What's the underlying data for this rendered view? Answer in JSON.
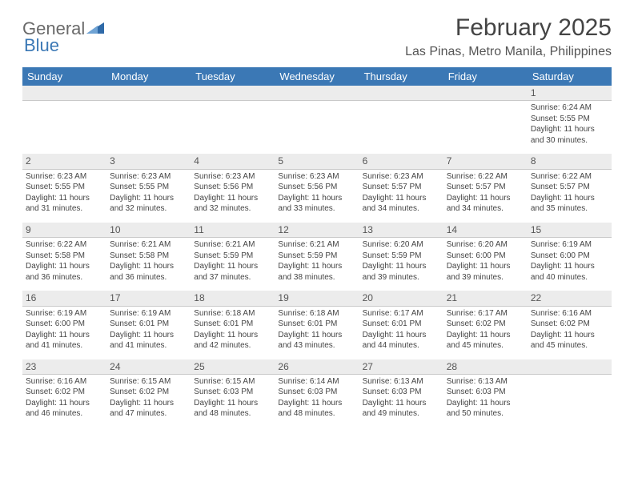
{
  "logo": {
    "part1": "General",
    "part2": "Blue"
  },
  "title": "February 2025",
  "location": "Las Pinas, Metro Manila, Philippines",
  "colors": {
    "header_bg": "#3b78b5",
    "header_text": "#ffffff",
    "numrow_bg": "#ececec",
    "text_color": "#444444",
    "page_bg": "#ffffff"
  },
  "day_headers": [
    "Sunday",
    "Monday",
    "Tuesday",
    "Wednesday",
    "Thursday",
    "Friday",
    "Saturday"
  ],
  "weeks": [
    {
      "nums": [
        "",
        "",
        "",
        "",
        "",
        "",
        "1"
      ],
      "cells": [
        {
          "sunrise": "",
          "sunset": "",
          "daylight": ""
        },
        {
          "sunrise": "",
          "sunset": "",
          "daylight": ""
        },
        {
          "sunrise": "",
          "sunset": "",
          "daylight": ""
        },
        {
          "sunrise": "",
          "sunset": "",
          "daylight": ""
        },
        {
          "sunrise": "",
          "sunset": "",
          "daylight": ""
        },
        {
          "sunrise": "",
          "sunset": "",
          "daylight": ""
        },
        {
          "sunrise": "Sunrise: 6:24 AM",
          "sunset": "Sunset: 5:55 PM",
          "daylight": "Daylight: 11 hours and 30 minutes."
        }
      ]
    },
    {
      "nums": [
        "2",
        "3",
        "4",
        "5",
        "6",
        "7",
        "8"
      ],
      "cells": [
        {
          "sunrise": "Sunrise: 6:23 AM",
          "sunset": "Sunset: 5:55 PM",
          "daylight": "Daylight: 11 hours and 31 minutes."
        },
        {
          "sunrise": "Sunrise: 6:23 AM",
          "sunset": "Sunset: 5:55 PM",
          "daylight": "Daylight: 11 hours and 32 minutes."
        },
        {
          "sunrise": "Sunrise: 6:23 AM",
          "sunset": "Sunset: 5:56 PM",
          "daylight": "Daylight: 11 hours and 32 minutes."
        },
        {
          "sunrise": "Sunrise: 6:23 AM",
          "sunset": "Sunset: 5:56 PM",
          "daylight": "Daylight: 11 hours and 33 minutes."
        },
        {
          "sunrise": "Sunrise: 6:23 AM",
          "sunset": "Sunset: 5:57 PM",
          "daylight": "Daylight: 11 hours and 34 minutes."
        },
        {
          "sunrise": "Sunrise: 6:22 AM",
          "sunset": "Sunset: 5:57 PM",
          "daylight": "Daylight: 11 hours and 34 minutes."
        },
        {
          "sunrise": "Sunrise: 6:22 AM",
          "sunset": "Sunset: 5:57 PM",
          "daylight": "Daylight: 11 hours and 35 minutes."
        }
      ]
    },
    {
      "nums": [
        "9",
        "10",
        "11",
        "12",
        "13",
        "14",
        "15"
      ],
      "cells": [
        {
          "sunrise": "Sunrise: 6:22 AM",
          "sunset": "Sunset: 5:58 PM",
          "daylight": "Daylight: 11 hours and 36 minutes."
        },
        {
          "sunrise": "Sunrise: 6:21 AM",
          "sunset": "Sunset: 5:58 PM",
          "daylight": "Daylight: 11 hours and 36 minutes."
        },
        {
          "sunrise": "Sunrise: 6:21 AM",
          "sunset": "Sunset: 5:59 PM",
          "daylight": "Daylight: 11 hours and 37 minutes."
        },
        {
          "sunrise": "Sunrise: 6:21 AM",
          "sunset": "Sunset: 5:59 PM",
          "daylight": "Daylight: 11 hours and 38 minutes."
        },
        {
          "sunrise": "Sunrise: 6:20 AM",
          "sunset": "Sunset: 5:59 PM",
          "daylight": "Daylight: 11 hours and 39 minutes."
        },
        {
          "sunrise": "Sunrise: 6:20 AM",
          "sunset": "Sunset: 6:00 PM",
          "daylight": "Daylight: 11 hours and 39 minutes."
        },
        {
          "sunrise": "Sunrise: 6:19 AM",
          "sunset": "Sunset: 6:00 PM",
          "daylight": "Daylight: 11 hours and 40 minutes."
        }
      ]
    },
    {
      "nums": [
        "16",
        "17",
        "18",
        "19",
        "20",
        "21",
        "22"
      ],
      "cells": [
        {
          "sunrise": "Sunrise: 6:19 AM",
          "sunset": "Sunset: 6:00 PM",
          "daylight": "Daylight: 11 hours and 41 minutes."
        },
        {
          "sunrise": "Sunrise: 6:19 AM",
          "sunset": "Sunset: 6:01 PM",
          "daylight": "Daylight: 11 hours and 41 minutes."
        },
        {
          "sunrise": "Sunrise: 6:18 AM",
          "sunset": "Sunset: 6:01 PM",
          "daylight": "Daylight: 11 hours and 42 minutes."
        },
        {
          "sunrise": "Sunrise: 6:18 AM",
          "sunset": "Sunset: 6:01 PM",
          "daylight": "Daylight: 11 hours and 43 minutes."
        },
        {
          "sunrise": "Sunrise: 6:17 AM",
          "sunset": "Sunset: 6:01 PM",
          "daylight": "Daylight: 11 hours and 44 minutes."
        },
        {
          "sunrise": "Sunrise: 6:17 AM",
          "sunset": "Sunset: 6:02 PM",
          "daylight": "Daylight: 11 hours and 45 minutes."
        },
        {
          "sunrise": "Sunrise: 6:16 AM",
          "sunset": "Sunset: 6:02 PM",
          "daylight": "Daylight: 11 hours and 45 minutes."
        }
      ]
    },
    {
      "nums": [
        "23",
        "24",
        "25",
        "26",
        "27",
        "28",
        ""
      ],
      "cells": [
        {
          "sunrise": "Sunrise: 6:16 AM",
          "sunset": "Sunset: 6:02 PM",
          "daylight": "Daylight: 11 hours and 46 minutes."
        },
        {
          "sunrise": "Sunrise: 6:15 AM",
          "sunset": "Sunset: 6:02 PM",
          "daylight": "Daylight: 11 hours and 47 minutes."
        },
        {
          "sunrise": "Sunrise: 6:15 AM",
          "sunset": "Sunset: 6:03 PM",
          "daylight": "Daylight: 11 hours and 48 minutes."
        },
        {
          "sunrise": "Sunrise: 6:14 AM",
          "sunset": "Sunset: 6:03 PM",
          "daylight": "Daylight: 11 hours and 48 minutes."
        },
        {
          "sunrise": "Sunrise: 6:13 AM",
          "sunset": "Sunset: 6:03 PM",
          "daylight": "Daylight: 11 hours and 49 minutes."
        },
        {
          "sunrise": "Sunrise: 6:13 AM",
          "sunset": "Sunset: 6:03 PM",
          "daylight": "Daylight: 11 hours and 50 minutes."
        },
        {
          "sunrise": "",
          "sunset": "",
          "daylight": ""
        }
      ]
    }
  ]
}
